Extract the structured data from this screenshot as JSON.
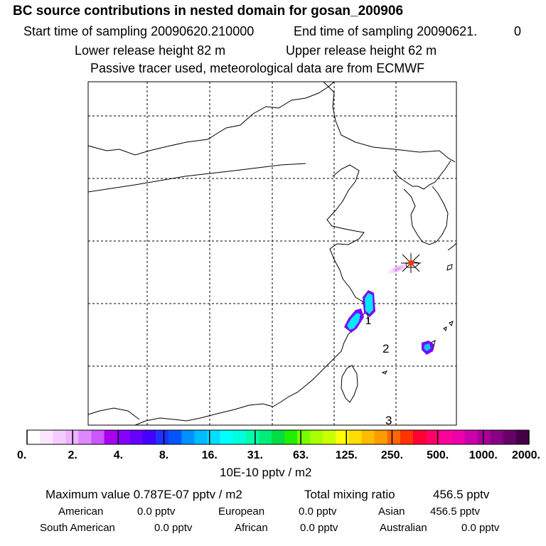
{
  "header": {
    "title": "BC  source contributions in nested domain for gosan_200906",
    "start_label": "Start time of sampling 20090620.210000",
    "end_label": "End time of sampling 20090621.",
    "end_suffix": "0",
    "lower_release": "Lower release height   82 m",
    "upper_release": "Upper release height   62 m",
    "passive_note": "Passive tracer used, meteorological data are from ECMWF"
  },
  "chart_data": {
    "type": "heatmap",
    "title": "BC  source contributions in nested domain for gosan_200906",
    "grid": true,
    "map_labels": [
      "1",
      "2",
      "3"
    ],
    "receptor": "gosan",
    "legend": {
      "unit": "10E-10 pptv / m2",
      "tick_labels": [
        "0.",
        "2.",
        "4.",
        "8.",
        "16.",
        "31.",
        "63.",
        "125.",
        "250.",
        "500.",
        "1000.",
        "2000."
      ],
      "colors": [
        "#ffffff",
        "#fce6ff",
        "#f5ccff",
        "#eeb2ff",
        "#dd88ff",
        "#cc55ff",
        "#aa00ee",
        "#8800ff",
        "#6600ff",
        "#4400ff",
        "#1e32ff",
        "#0055ff",
        "#0090ff",
        "#00bbff",
        "#00dfff",
        "#00ffff",
        "#00ffdd",
        "#00ffaa",
        "#00ee77",
        "#00dd44",
        "#22ee00",
        "#77ff00",
        "#aaff00",
        "#ccff00",
        "#ffff00",
        "#ffdd00",
        "#ffbb00",
        "#ff9900",
        "#ff6600",
        "#ff3300",
        "#ff0033",
        "#ff0066",
        "#ff0099",
        "#ee00aa",
        "#cc00aa",
        "#aa0099",
        "#880088",
        "#660066",
        "#440044"
      ]
    }
  },
  "stats": {
    "maximum": "Maximum value  0.787E-07 pptv / m2",
    "total": "Total mixing ratio",
    "total_value": "456.5 pptv"
  },
  "regions": [
    {
      "name": "American",
      "value": "0.0 pptv"
    },
    {
      "name": "European",
      "value": "0.0 pptv"
    },
    {
      "name": "Asian",
      "value": "456.5 pptv"
    },
    {
      "name": "South American",
      "value": "0.0 pptv"
    },
    {
      "name": "African",
      "value": "0.0 pptv"
    },
    {
      "name": "Australian",
      "value": "0.0 pptv"
    }
  ]
}
